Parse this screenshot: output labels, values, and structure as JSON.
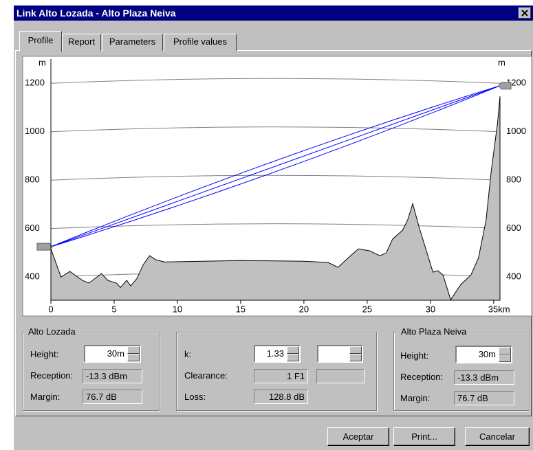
{
  "window": {
    "title": "Link Alto Lozada - Alto Plaza Neiva"
  },
  "tabs": [
    "Profile",
    "Report",
    "Parameters",
    "Profile values"
  ],
  "chart_data": {
    "type": "area",
    "y_unit_left": "m",
    "y_unit_right": "m",
    "xlim": [
      0,
      35.5
    ],
    "ylim": [
      304,
      1300
    ],
    "yticks": [
      400,
      600,
      800,
      1000,
      1200
    ],
    "xticks": [
      0,
      5,
      10,
      15,
      20,
      25,
      30,
      {
        "value": 35,
        "label": "35km"
      }
    ],
    "grid": true,
    "terrain": {
      "color": "#c0c0c0",
      "x": [
        0,
        0.8,
        1.5,
        2.5,
        3,
        4,
        4.5,
        5.2,
        5.5,
        6,
        6.3,
        6.8,
        7.3,
        7.8,
        8.3,
        9,
        12,
        15,
        20,
        21.9,
        22.7,
        23.5,
        24.3,
        25.2,
        26,
        26.5,
        27,
        27.8,
        28.2,
        28.6,
        29.1,
        29.8,
        30.2,
        30.6,
        31,
        31.6,
        32.4,
        33.2,
        33.8,
        34.4,
        34.8,
        35.3,
        35.5
      ],
      "values": [
        516,
        400,
        423,
        386,
        375,
        414,
        386,
        374,
        357,
        386,
        363,
        394,
        451,
        488,
        471,
        462,
        465,
        468,
        465,
        460,
        440,
        479,
        516,
        508,
        488,
        499,
        556,
        593,
        635,
        703,
        607,
        488,
        420,
        426,
        408,
        306,
        369,
        408,
        479,
        635,
        834,
        1033,
        1146
      ]
    },
    "link": {
      "color": "#0000ff",
      "x": [
        0,
        35.5
      ],
      "values": [
        525,
        1190
      ]
    }
  },
  "panels": {
    "left": {
      "title": "Alto Lozada",
      "height_label": "Height:",
      "height": "30m",
      "reception_label": "Reception:",
      "reception": "-13.3 dBm",
      "margin_label": "Margin:",
      "margin": "76.7 dB"
    },
    "middle": {
      "k_label": "k:",
      "k": "1.33",
      "clearance_label": "Clearance:",
      "clearance": "1 F1",
      "loss_label": "Loss:",
      "loss": "128.8 dB"
    },
    "right": {
      "title": "Alto Plaza Neiva",
      "height_label": "Height:",
      "height": "30m",
      "reception_label": "Reception:",
      "reception": "-13.3 dBm",
      "margin_label": "Margin:",
      "margin": "76.7 dB"
    }
  },
  "buttons": [
    "Aceptar",
    "Print...",
    "Cancelar"
  ]
}
